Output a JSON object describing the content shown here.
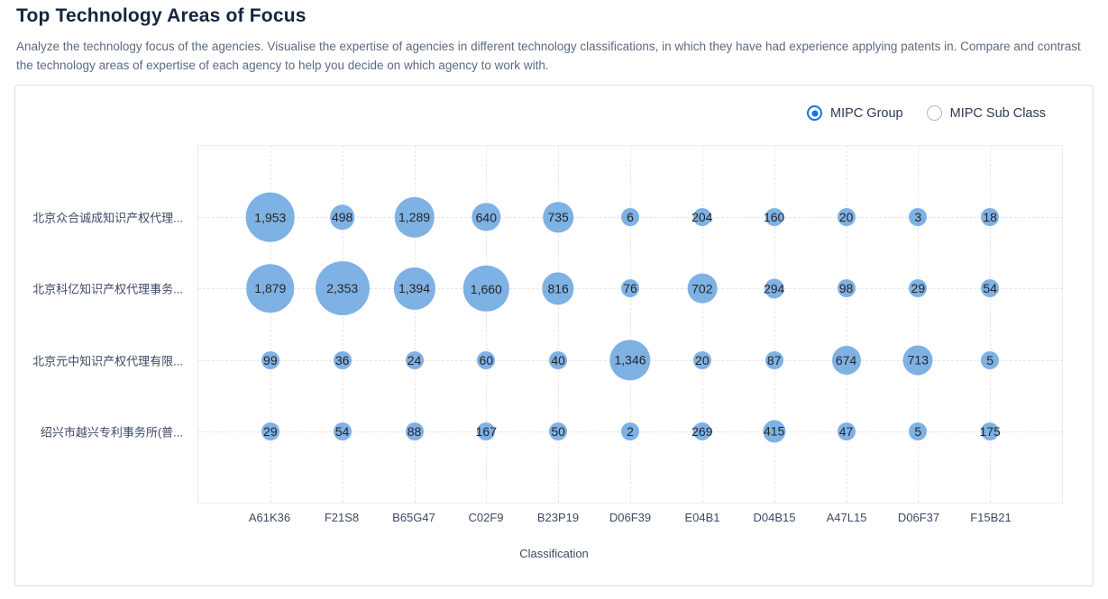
{
  "header": {
    "title": "Top Technology Areas of Focus",
    "description": "Analyze the technology focus of the agencies. Visualise the expertise of agencies in different technology classifications, in which they have had experience applying patents in. Compare and contrast the technology areas of expertise of each agency to help you decide on which agency to work with."
  },
  "controls": {
    "options": [
      {
        "label": "MIPC Group",
        "selected": true
      },
      {
        "label": "MIPC Sub Class",
        "selected": false
      }
    ]
  },
  "chart_data": {
    "type": "scatter",
    "title": "",
    "xlabel": "Classification",
    "ylabel": "",
    "grid": "dashed",
    "legend_position": "none",
    "x_categories": [
      "A61K36",
      "F21S8",
      "B65G47",
      "C02F9",
      "B23P19",
      "D06F39",
      "E04B1",
      "D04B15",
      "A47L15",
      "D06F37",
      "F15B21"
    ],
    "y_categories": [
      "北京众合诚成知识产权代理...",
      "北京科亿知识产权代理事务...",
      "北京元中知识产权代理有限...",
      "绍兴市越兴专利事务所(普..."
    ],
    "series": [
      {
        "name": "北京众合诚成知识产权代理...",
        "values": [
          1953,
          498,
          1289,
          640,
          735,
          6,
          204,
          160,
          20,
          3,
          18
        ]
      },
      {
        "name": "北京科亿知识产权代理事务...",
        "values": [
          1879,
          2353,
          1394,
          1660,
          816,
          76,
          702,
          294,
          98,
          29,
          54
        ]
      },
      {
        "name": "北京元中知识产权代理有限...",
        "values": [
          99,
          36,
          24,
          60,
          40,
          1346,
          20,
          87,
          674,
          713,
          5
        ]
      },
      {
        "name": "绍兴市越兴专利事务所(普...",
        "values": [
          29,
          54,
          88,
          167,
          50,
          2,
          269,
          415,
          47,
          5,
          175
        ]
      }
    ],
    "bubble_color": "#7EB1E4",
    "bubble_min_radius": 10,
    "bubble_max_radius": 30
  }
}
